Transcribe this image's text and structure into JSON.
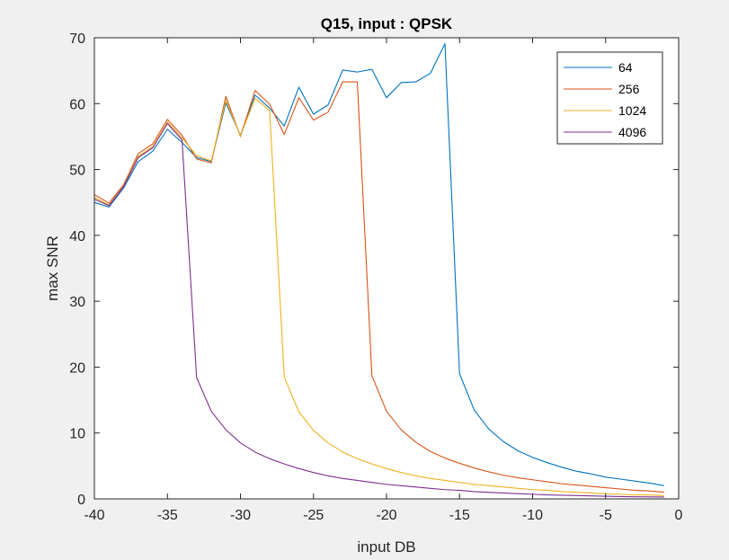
{
  "chart_data": {
    "type": "line",
    "title": "Q15, input : QPSK",
    "xlabel": "input DB",
    "ylabel": "max SNR",
    "xlim": [
      -40,
      0
    ],
    "ylim": [
      0,
      70
    ],
    "xticks": [
      -40,
      -35,
      -30,
      -25,
      -20,
      -15,
      -10,
      -5,
      0
    ],
    "yticks": [
      0,
      10,
      20,
      30,
      40,
      50,
      60,
      70
    ],
    "xtick_labels": [
      "-40",
      "-35",
      "-30",
      "-25",
      "-20",
      "-15",
      "-10",
      "-5",
      "0"
    ],
    "ytick_labels": [
      "0",
      "10",
      "20",
      "30",
      "40",
      "50",
      "60",
      "70"
    ],
    "grid": false,
    "legend_position": "top-right",
    "x": [
      -40,
      -39,
      -38,
      -37,
      -36,
      -35,
      -34,
      -33,
      -32,
      -31,
      -30,
      -29,
      -28,
      -27,
      -26,
      -25,
      -24,
      -23,
      -22,
      -21,
      -20,
      -19,
      -18,
      -17,
      -16,
      -15,
      -14,
      -13,
      -12,
      -11,
      -10,
      -9,
      -8,
      -7,
      -6,
      -5,
      -4,
      -3,
      -2,
      -1
    ],
    "series": [
      {
        "name": "64",
        "color": "#0072bd",
        "values": [
          45.0,
          44.3,
          47.2,
          51.2,
          52.8,
          56.1,
          54.1,
          51.8,
          51.2,
          60.1,
          55.2,
          61.3,
          59.3,
          56.6,
          62.5,
          58.4,
          59.8,
          65.1,
          64.8,
          65.2,
          60.9,
          63.2,
          63.3,
          64.6,
          69.1,
          19.0,
          13.5,
          10.6,
          8.7,
          7.3,
          6.3,
          5.5,
          4.8,
          4.2,
          3.8,
          3.3,
          3.0,
          2.7,
          2.4,
          2.0
        ]
      },
      {
        "name": "256",
        "color": "#d95319",
        "values": [
          46.2,
          44.9,
          47.7,
          52.4,
          53.9,
          57.6,
          55.2,
          51.6,
          51.0,
          61.1,
          55.0,
          62.0,
          59.9,
          55.3,
          60.9,
          57.5,
          58.7,
          63.3,
          63.3,
          18.7,
          13.3,
          10.5,
          8.6,
          7.2,
          6.2,
          5.4,
          4.7,
          4.1,
          3.6,
          3.2,
          2.9,
          2.6,
          2.3,
          2.1,
          1.9,
          1.7,
          1.5,
          1.3,
          1.2,
          1.0
        ]
      },
      {
        "name": "1024",
        "color": "#edb120",
        "values": [
          45.8,
          44.6,
          47.5,
          52.0,
          53.5,
          57.2,
          54.8,
          52.1,
          51.3,
          60.5,
          55.1,
          60.8,
          58.9,
          18.5,
          13.2,
          10.4,
          8.5,
          7.1,
          6.1,
          5.3,
          4.6,
          4.0,
          3.5,
          3.1,
          2.8,
          2.5,
          2.2,
          2.0,
          1.8,
          1.6,
          1.4,
          1.3,
          1.1,
          1.0,
          0.9,
          0.8,
          0.7,
          0.6,
          0.6,
          0.5
        ]
      },
      {
        "name": "4096",
        "color": "#7e2f8e",
        "values": [
          45.5,
          44.5,
          47.4,
          51.8,
          53.3,
          57.0,
          54.5,
          18.4,
          13.3,
          10.5,
          8.5,
          7.1,
          6.1,
          5.3,
          4.6,
          4.0,
          3.5,
          3.1,
          2.8,
          2.5,
          2.2,
          2.0,
          1.8,
          1.6,
          1.4,
          1.3,
          1.1,
          1.0,
          0.9,
          0.8,
          0.7,
          0.6,
          0.55,
          0.5,
          0.45,
          0.4,
          0.35,
          0.32,
          0.3,
          0.28
        ]
      }
    ]
  }
}
